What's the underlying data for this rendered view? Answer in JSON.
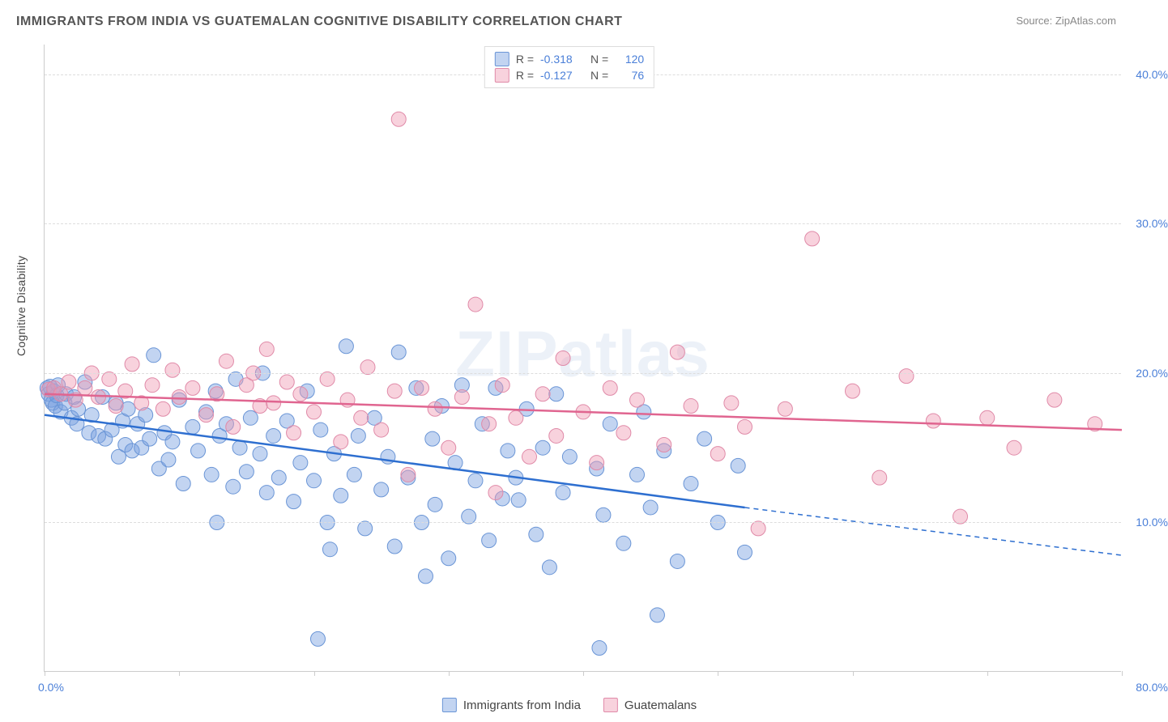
{
  "title": "IMMIGRANTS FROM INDIA VS GUATEMALAN COGNITIVE DISABILITY CORRELATION CHART",
  "source_prefix": "Source: ",
  "source_name": "ZipAtlas.com",
  "ylabel": "Cognitive Disability",
  "watermark_a": "ZIP",
  "watermark_b": "atlas",
  "chart": {
    "type": "scatter",
    "xlim": [
      0,
      80
    ],
    "ylim": [
      0,
      42
    ],
    "y_ticks": [
      10,
      20,
      30,
      40
    ],
    "y_tick_labels": [
      "10.0%",
      "20.0%",
      "30.0%",
      "40.0%"
    ],
    "x_label_start": "0.0%",
    "x_label_end": "80.0%",
    "x_minor_ticks": [
      0,
      10,
      20,
      30,
      40,
      50,
      60,
      70,
      80
    ],
    "background_color": "#ffffff",
    "grid_color": "#dddddd",
    "series": [
      {
        "id": "india",
        "label": "Immigrants from India",
        "r_label": "R =",
        "r_value": "-0.318",
        "n_label": "N =",
        "n_value": "120",
        "marker_fill": "rgba(120,160,225,0.45)",
        "marker_stroke": "#6a95d6",
        "marker_radius": 9,
        "line_color": "#2e6fd0",
        "line_width": 2.5,
        "trend_start": [
          0,
          17.2
        ],
        "trend_solid_end": [
          52,
          11.0
        ],
        "trend_dash_end": [
          80,
          7.8
        ],
        "points": [
          [
            0.2,
            19.0
          ],
          [
            0.3,
            18.6
          ],
          [
            0.4,
            19.1
          ],
          [
            0.5,
            18.2
          ],
          [
            0.6,
            18.0
          ],
          [
            0.7,
            18.8
          ],
          [
            0.8,
            17.8
          ],
          [
            0.9,
            18.5
          ],
          [
            1.0,
            19.2
          ],
          [
            1.2,
            17.4
          ],
          [
            1.5,
            18.0
          ],
          [
            1.6,
            18.6
          ],
          [
            2.0,
            17.0
          ],
          [
            2.2,
            18.4
          ],
          [
            2.4,
            16.6
          ],
          [
            2.5,
            17.6
          ],
          [
            3.0,
            19.4
          ],
          [
            3.3,
            16.0
          ],
          [
            3.5,
            17.2
          ],
          [
            4.0,
            15.8
          ],
          [
            4.3,
            18.4
          ],
          [
            4.5,
            15.6
          ],
          [
            5.0,
            16.2
          ],
          [
            5.3,
            18.0
          ],
          [
            5.5,
            14.4
          ],
          [
            5.8,
            16.8
          ],
          [
            6.0,
            15.2
          ],
          [
            6.2,
            17.6
          ],
          [
            6.5,
            14.8
          ],
          [
            6.9,
            16.6
          ],
          [
            7.2,
            15.0
          ],
          [
            7.5,
            17.2
          ],
          [
            7.8,
            15.6
          ],
          [
            8.1,
            21.2
          ],
          [
            8.5,
            13.6
          ],
          [
            8.9,
            16.0
          ],
          [
            9.2,
            14.2
          ],
          [
            9.5,
            15.4
          ],
          [
            10.0,
            18.2
          ],
          [
            10.3,
            12.6
          ],
          [
            11.0,
            16.4
          ],
          [
            11.4,
            14.8
          ],
          [
            12.0,
            17.4
          ],
          [
            12.4,
            13.2
          ],
          [
            12.7,
            18.8
          ],
          [
            12.8,
            10.0
          ],
          [
            13.0,
            15.8
          ],
          [
            13.5,
            16.6
          ],
          [
            14.0,
            12.4
          ],
          [
            14.2,
            19.6
          ],
          [
            14.5,
            15.0
          ],
          [
            15.0,
            13.4
          ],
          [
            15.3,
            17.0
          ],
          [
            16.0,
            14.6
          ],
          [
            16.2,
            20.0
          ],
          [
            16.5,
            12.0
          ],
          [
            17.0,
            15.8
          ],
          [
            17.4,
            13.0
          ],
          [
            18.0,
            16.8
          ],
          [
            18.5,
            11.4
          ],
          [
            19.0,
            14.0
          ],
          [
            19.5,
            18.8
          ],
          [
            20.0,
            12.8
          ],
          [
            20.3,
            2.2
          ],
          [
            20.5,
            16.2
          ],
          [
            21.0,
            10.0
          ],
          [
            21.2,
            8.2
          ],
          [
            21.5,
            14.6
          ],
          [
            22.0,
            11.8
          ],
          [
            22.4,
            21.8
          ],
          [
            23.0,
            13.2
          ],
          [
            23.3,
            15.8
          ],
          [
            23.8,
            9.6
          ],
          [
            24.5,
            17.0
          ],
          [
            25.0,
            12.2
          ],
          [
            25.5,
            14.4
          ],
          [
            26.0,
            8.4
          ],
          [
            26.3,
            21.4
          ],
          [
            27.0,
            13.0
          ],
          [
            27.6,
            19.0
          ],
          [
            28.0,
            10.0
          ],
          [
            28.3,
            6.4
          ],
          [
            28.8,
            15.6
          ],
          [
            29.0,
            11.2
          ],
          [
            29.5,
            17.8
          ],
          [
            30.0,
            7.6
          ],
          [
            30.5,
            14.0
          ],
          [
            31.0,
            19.2
          ],
          [
            31.5,
            10.4
          ],
          [
            32.0,
            12.8
          ],
          [
            32.5,
            16.6
          ],
          [
            33.0,
            8.8
          ],
          [
            33.5,
            19.0
          ],
          [
            34.0,
            11.6
          ],
          [
            34.4,
            14.8
          ],
          [
            35.0,
            13.0
          ],
          [
            35.2,
            11.5
          ],
          [
            35.8,
            17.6
          ],
          [
            36.5,
            9.2
          ],
          [
            37.0,
            15.0
          ],
          [
            37.5,
            7.0
          ],
          [
            38.0,
            18.6
          ],
          [
            38.5,
            12.0
          ],
          [
            39.0,
            14.4
          ],
          [
            41.0,
            13.6
          ],
          [
            41.2,
            1.6
          ],
          [
            41.5,
            10.5
          ],
          [
            42.0,
            16.6
          ],
          [
            43.0,
            8.6
          ],
          [
            44.0,
            13.2
          ],
          [
            44.5,
            17.4
          ],
          [
            45.0,
            11.0
          ],
          [
            45.5,
            3.8
          ],
          [
            46.0,
            14.8
          ],
          [
            47.0,
            7.4
          ],
          [
            48.0,
            12.6
          ],
          [
            49.0,
            15.6
          ],
          [
            50.0,
            10.0
          ],
          [
            51.5,
            13.8
          ],
          [
            52.0,
            8.0
          ]
        ]
      },
      {
        "id": "guatemala",
        "label": "Guatemalans",
        "r_label": "R =",
        "r_value": "-0.127",
        "n_label": "N =",
        "n_value": "76",
        "marker_fill": "rgba(240,155,180,0.45)",
        "marker_stroke": "#e08aa8",
        "marker_radius": 9,
        "line_color": "#e06590",
        "line_width": 2.5,
        "trend_start": [
          0,
          18.6
        ],
        "trend_solid_end": [
          80,
          16.2
        ],
        "points": [
          [
            0.3,
            18.9
          ],
          [
            0.7,
            19.0
          ],
          [
            1.2,
            18.6
          ],
          [
            1.8,
            19.4
          ],
          [
            2.3,
            18.2
          ],
          [
            3.0,
            19.0
          ],
          [
            3.5,
            20.0
          ],
          [
            4.0,
            18.4
          ],
          [
            4.8,
            19.6
          ],
          [
            5.3,
            17.8
          ],
          [
            6.0,
            18.8
          ],
          [
            6.5,
            20.6
          ],
          [
            7.2,
            18.0
          ],
          [
            8.0,
            19.2
          ],
          [
            8.8,
            17.6
          ],
          [
            9.5,
            20.2
          ],
          [
            10.0,
            18.4
          ],
          [
            11.0,
            19.0
          ],
          [
            12.0,
            17.2
          ],
          [
            12.8,
            18.6
          ],
          [
            13.5,
            20.8
          ],
          [
            14.0,
            16.4
          ],
          [
            15.0,
            19.2
          ],
          [
            15.5,
            20.0
          ],
          [
            16.0,
            17.8
          ],
          [
            16.5,
            21.6
          ],
          [
            17.0,
            18.0
          ],
          [
            18.0,
            19.4
          ],
          [
            18.5,
            16.0
          ],
          [
            19.0,
            18.6
          ],
          [
            20.0,
            17.4
          ],
          [
            21.0,
            19.6
          ],
          [
            22.0,
            15.4
          ],
          [
            22.5,
            18.2
          ],
          [
            23.5,
            17.0
          ],
          [
            24.0,
            20.4
          ],
          [
            25.0,
            16.2
          ],
          [
            26.0,
            18.8
          ],
          [
            26.3,
            37.0
          ],
          [
            27.0,
            13.2
          ],
          [
            28.0,
            19.0
          ],
          [
            29.0,
            17.6
          ],
          [
            30.0,
            15.0
          ],
          [
            31.0,
            18.4
          ],
          [
            32.0,
            24.6
          ],
          [
            33.0,
            16.6
          ],
          [
            33.5,
            12.0
          ],
          [
            34.0,
            19.2
          ],
          [
            35.0,
            17.0
          ],
          [
            36.0,
            14.4
          ],
          [
            37.0,
            18.6
          ],
          [
            38.0,
            15.8
          ],
          [
            38.5,
            21.0
          ],
          [
            40.0,
            17.4
          ],
          [
            41.0,
            14.0
          ],
          [
            42.0,
            19.0
          ],
          [
            43.0,
            16.0
          ],
          [
            44.0,
            18.2
          ],
          [
            46.0,
            15.2
          ],
          [
            47.0,
            21.4
          ],
          [
            48.0,
            17.8
          ],
          [
            50.0,
            14.6
          ],
          [
            51.0,
            18.0
          ],
          [
            52.0,
            16.4
          ],
          [
            53.0,
            9.6
          ],
          [
            55.0,
            17.6
          ],
          [
            57.0,
            29.0
          ],
          [
            60.0,
            18.8
          ],
          [
            62.0,
            13.0
          ],
          [
            64.0,
            19.8
          ],
          [
            66.0,
            16.8
          ],
          [
            68.0,
            10.4
          ],
          [
            70.0,
            17.0
          ],
          [
            72.0,
            15.0
          ],
          [
            75.0,
            18.2
          ],
          [
            78.0,
            16.6
          ]
        ]
      }
    ]
  }
}
